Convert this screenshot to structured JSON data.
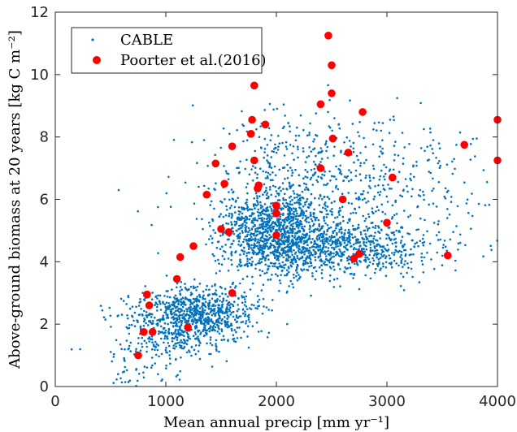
{
  "chart_data": {
    "type": "scatter",
    "title": "",
    "xlabel": "Mean annual precip [mm yr⁻¹]",
    "ylabel": "Above-ground biomass at 20 years [kg C m⁻²]",
    "xlim": [
      0,
      4000
    ],
    "ylim": [
      0,
      12
    ],
    "xticks": [
      "0",
      "1000",
      "2000",
      "3000",
      "4000"
    ],
    "yticks": [
      "0",
      "2",
      "4",
      "6",
      "8",
      "10",
      "12"
    ],
    "grid": false,
    "legend_position": "top-left",
    "colors": {
      "cable": "#0072BD",
      "poorter": "#FF0000",
      "axis": "#262626"
    },
    "series": [
      {
        "name": "CABLE",
        "marker": "dot",
        "clusters": [
          {
            "cx": 1300,
            "cy": 2.3,
            "sx": 260,
            "sy": 0.45,
            "n": 750
          },
          {
            "cx": 1000,
            "cy": 1.8,
            "sx": 250,
            "sy": 0.6,
            "n": 250
          },
          {
            "cx": 2000,
            "cy": 4.9,
            "sx": 250,
            "sy": 0.7,
            "n": 1000
          },
          {
            "cx": 2600,
            "cy": 4.4,
            "sx": 450,
            "sy": 0.45,
            "n": 700
          },
          {
            "cx": 2500,
            "cy": 6.2,
            "sx": 550,
            "sy": 1.0,
            "n": 500
          },
          {
            "cx": 2100,
            "cy": 7.8,
            "sx": 400,
            "sy": 0.7,
            "n": 130
          },
          {
            "cx": 3400,
            "cy": 6.8,
            "sx": 350,
            "sy": 1.0,
            "n": 90
          },
          {
            "cx": 700,
            "cy": 0.6,
            "sx": 150,
            "sy": 0.4,
            "n": 40
          }
        ]
      },
      {
        "name": "Poorter et al.(2016)",
        "marker": "circle",
        "points": [
          [
            750,
            1.0
          ],
          [
            800,
            1.75
          ],
          [
            830,
            2.95
          ],
          [
            850,
            2.6
          ],
          [
            880,
            1.75
          ],
          [
            1100,
            3.45
          ],
          [
            1130,
            4.15
          ],
          [
            1200,
            1.9
          ],
          [
            1250,
            4.5
          ],
          [
            1370,
            6.15
          ],
          [
            1450,
            7.15
          ],
          [
            1500,
            5.05
          ],
          [
            1530,
            6.5
          ],
          [
            1570,
            4.95
          ],
          [
            1600,
            3.0
          ],
          [
            1600,
            7.7
          ],
          [
            1770,
            8.1
          ],
          [
            1780,
            8.55
          ],
          [
            1800,
            7.25
          ],
          [
            1800,
            9.65
          ],
          [
            1830,
            6.35
          ],
          [
            1840,
            6.45
          ],
          [
            1900,
            8.4
          ],
          [
            2000,
            5.8
          ],
          [
            2000,
            5.55
          ],
          [
            2000,
            4.85
          ],
          [
            2400,
            9.05
          ],
          [
            2400,
            7.0
          ],
          [
            2470,
            11.25
          ],
          [
            2500,
            10.3
          ],
          [
            2500,
            9.4
          ],
          [
            2510,
            7.95
          ],
          [
            2600,
            6.0
          ],
          [
            2650,
            7.5
          ],
          [
            2700,
            4.1
          ],
          [
            2750,
            4.25
          ],
          [
            2780,
            8.8
          ],
          [
            3000,
            5.25
          ],
          [
            3050,
            6.7
          ],
          [
            3550,
            4.2
          ],
          [
            3700,
            7.75
          ],
          [
            4000,
            8.55
          ],
          [
            4000,
            7.25
          ]
        ]
      }
    ]
  }
}
